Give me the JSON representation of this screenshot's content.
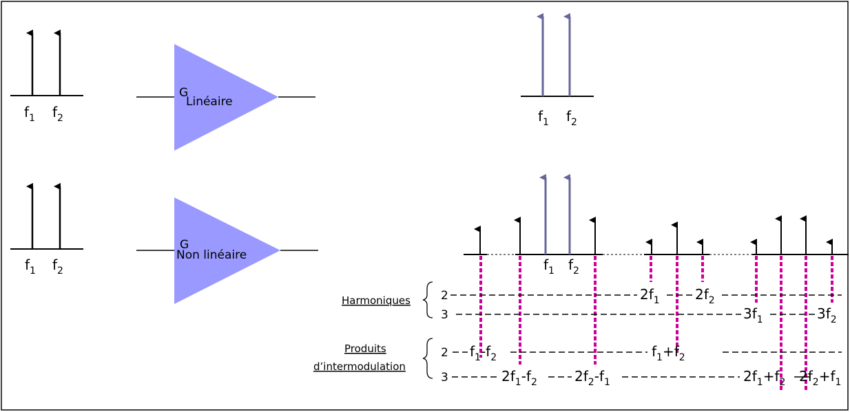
{
  "colors": {
    "amp_fill": "#9999ff",
    "input_tone": "#000000",
    "output_tone": "#66669a",
    "product_marker": "#cc0099",
    "frame": "#000000"
  },
  "input_tones": {
    "f1": "f",
    "f1_sub": "1",
    "f2": "f",
    "f2_sub": "2"
  },
  "output_tones": {
    "f1": "f",
    "f1_sub": "1",
    "f2": "f",
    "f2_sub": "2"
  },
  "linear_amp": {
    "gain": "G",
    "label": "Linéaire"
  },
  "nonlinear_amp": {
    "gain": "G",
    "label": "Non linéaire"
  },
  "harmonics": {
    "label": "Harmoniques",
    "order2": "2",
    "order3": "3",
    "h2f1": {
      "base": "2f",
      "sub": "1"
    },
    "h2f2": {
      "base": "2f",
      "sub": "2"
    },
    "h3f1": {
      "base": "3f",
      "sub": "1"
    },
    "h3f2": {
      "base": "3f",
      "sub": "2"
    }
  },
  "intermod": {
    "label_line1": "Produits",
    "label_line2": "d’intermodulation",
    "order2": "2",
    "order3": "3",
    "diff": {
      "a": "f",
      "a_sub": "1",
      "sep": "-f",
      "b_sub": "2"
    },
    "sum": {
      "a": "f",
      "a_sub": "1",
      "sep": "+f",
      "b_sub": "2"
    },
    "p2f1mf2": {
      "a": "2f",
      "a_sub": "1",
      "sep": "-f",
      "b_sub": "2"
    },
    "p2f2mf1": {
      "a": "2f",
      "a_sub": "2",
      "sep": "-f",
      "b_sub": "1"
    },
    "p2f1pf2": {
      "a": "2f",
      "a_sub": "1",
      "sep": "+f",
      "b_sub": "2"
    },
    "p2f2pf1": {
      "a": "2f",
      "a_sub": "2",
      "sep": "+f",
      "b_sub": "1"
    }
  }
}
